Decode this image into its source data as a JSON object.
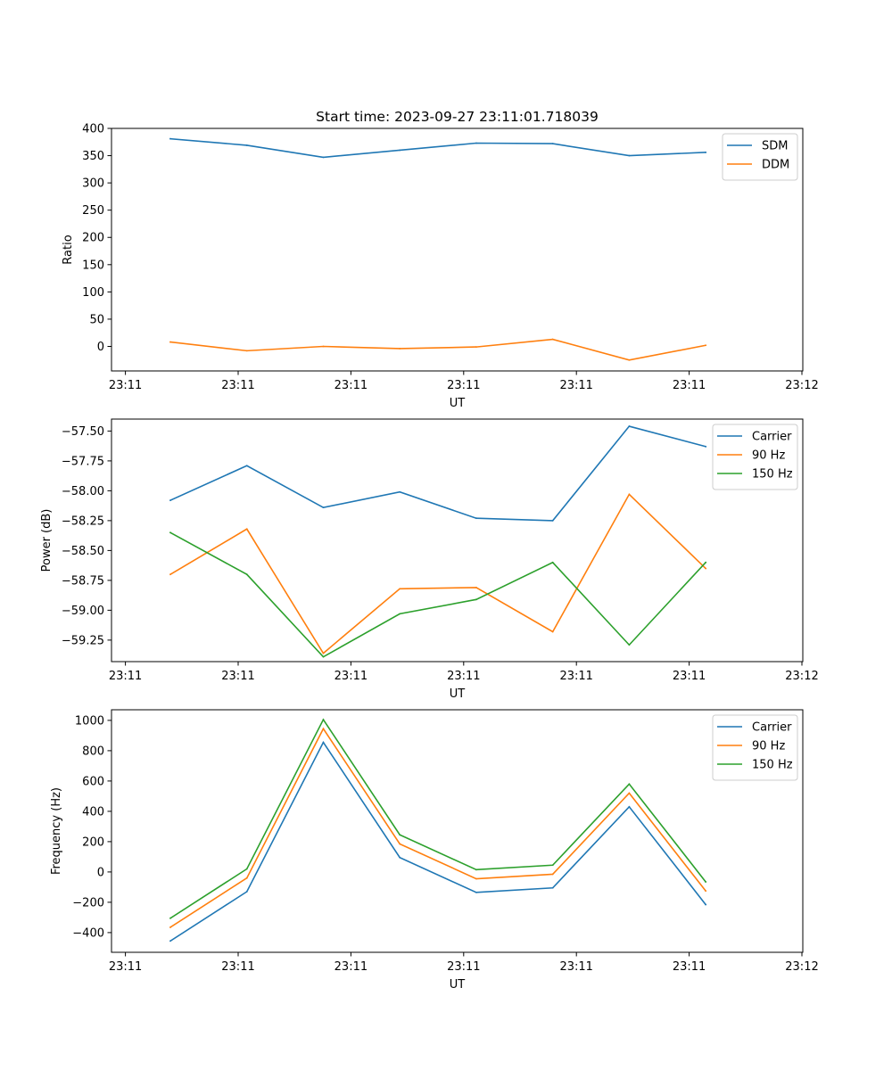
{
  "figure_title": "Start time: 2023-09-27 23:11:01.718039",
  "chart_data": [
    {
      "type": "line",
      "title": "Start time: 2023-09-27 23:11:01.718039",
      "xlabel": "UT",
      "ylabel": "Ratio",
      "x_ticks": [
        "23:11",
        "23:11",
        "23:11",
        "23:11",
        "23:11",
        "23:11",
        "23:12"
      ],
      "x": [
        1,
        2,
        3,
        4,
        5,
        6,
        7,
        8
      ],
      "xlim": [
        0.23,
        9.27
      ],
      "ylim": [
        -45,
        400
      ],
      "y_ticks": [
        0,
        50,
        100,
        150,
        200,
        250,
        300,
        350,
        400
      ],
      "y_tick_decimals": 0,
      "legend_position": "top-right",
      "series": [
        {
          "name": "SDM",
          "color": "#1f77b4",
          "values": [
            381,
            369,
            347,
            360,
            373,
            372,
            350,
            356
          ]
        },
        {
          "name": "DDM",
          "color": "#ff7f0e",
          "values": [
            8,
            -8,
            0,
            -4,
            -1,
            13,
            -25,
            2
          ]
        }
      ]
    },
    {
      "type": "line",
      "title": "",
      "xlabel": "UT",
      "ylabel": "Power (dB)",
      "x_ticks": [
        "23:11",
        "23:11",
        "23:11",
        "23:11",
        "23:11",
        "23:11",
        "23:12"
      ],
      "x": [
        1,
        2,
        3,
        4,
        5,
        6,
        7,
        8
      ],
      "xlim": [
        0.23,
        9.27
      ],
      "ylim": [
        -59.43,
        -57.4
      ],
      "y_ticks": [
        -59.25,
        -59.0,
        -58.75,
        -58.5,
        -58.25,
        -58.0,
        -57.75,
        -57.5
      ],
      "y_tick_decimals": 2,
      "legend_position": "top-right",
      "series": [
        {
          "name": "Carrier",
          "color": "#1f77b4",
          "values": [
            -58.08,
            -57.79,
            -58.14,
            -58.01,
            -58.23,
            -58.25,
            -57.46,
            -57.63
          ]
        },
        {
          "name": "90 Hz",
          "color": "#ff7f0e",
          "values": [
            -58.7,
            -58.32,
            -59.36,
            -58.82,
            -58.81,
            -59.18,
            -58.03,
            -58.65
          ]
        },
        {
          "name": "150 Hz",
          "color": "#2ca02c",
          "values": [
            -58.35,
            -58.7,
            -59.39,
            -59.03,
            -58.91,
            -58.6,
            -59.29,
            -58.6
          ]
        }
      ]
    },
    {
      "type": "line",
      "title": "",
      "xlabel": "UT",
      "ylabel": "Frequency (Hz)",
      "x_ticks": [
        "23:11",
        "23:11",
        "23:11",
        "23:11",
        "23:11",
        "23:11",
        "23:12"
      ],
      "x": [
        1,
        2,
        3,
        4,
        5,
        6,
        7,
        8
      ],
      "xlim": [
        0.23,
        9.27
      ],
      "ylim": [
        -530,
        1070
      ],
      "y_ticks": [
        -400,
        -200,
        0,
        200,
        400,
        600,
        800,
        1000
      ],
      "y_tick_decimals": 0,
      "legend_position": "top-right",
      "series": [
        {
          "name": "Carrier",
          "color": "#1f77b4",
          "values": [
            -455,
            -130,
            855,
            95,
            -135,
            -105,
            430,
            -215
          ]
        },
        {
          "name": "90 Hz",
          "color": "#ff7f0e",
          "values": [
            -365,
            -40,
            945,
            185,
            -45,
            -15,
            520,
            -125
          ]
        },
        {
          "name": "150 Hz",
          "color": "#2ca02c",
          "values": [
            -305,
            20,
            1005,
            245,
            15,
            45,
            580,
            -65
          ]
        }
      ]
    }
  ]
}
